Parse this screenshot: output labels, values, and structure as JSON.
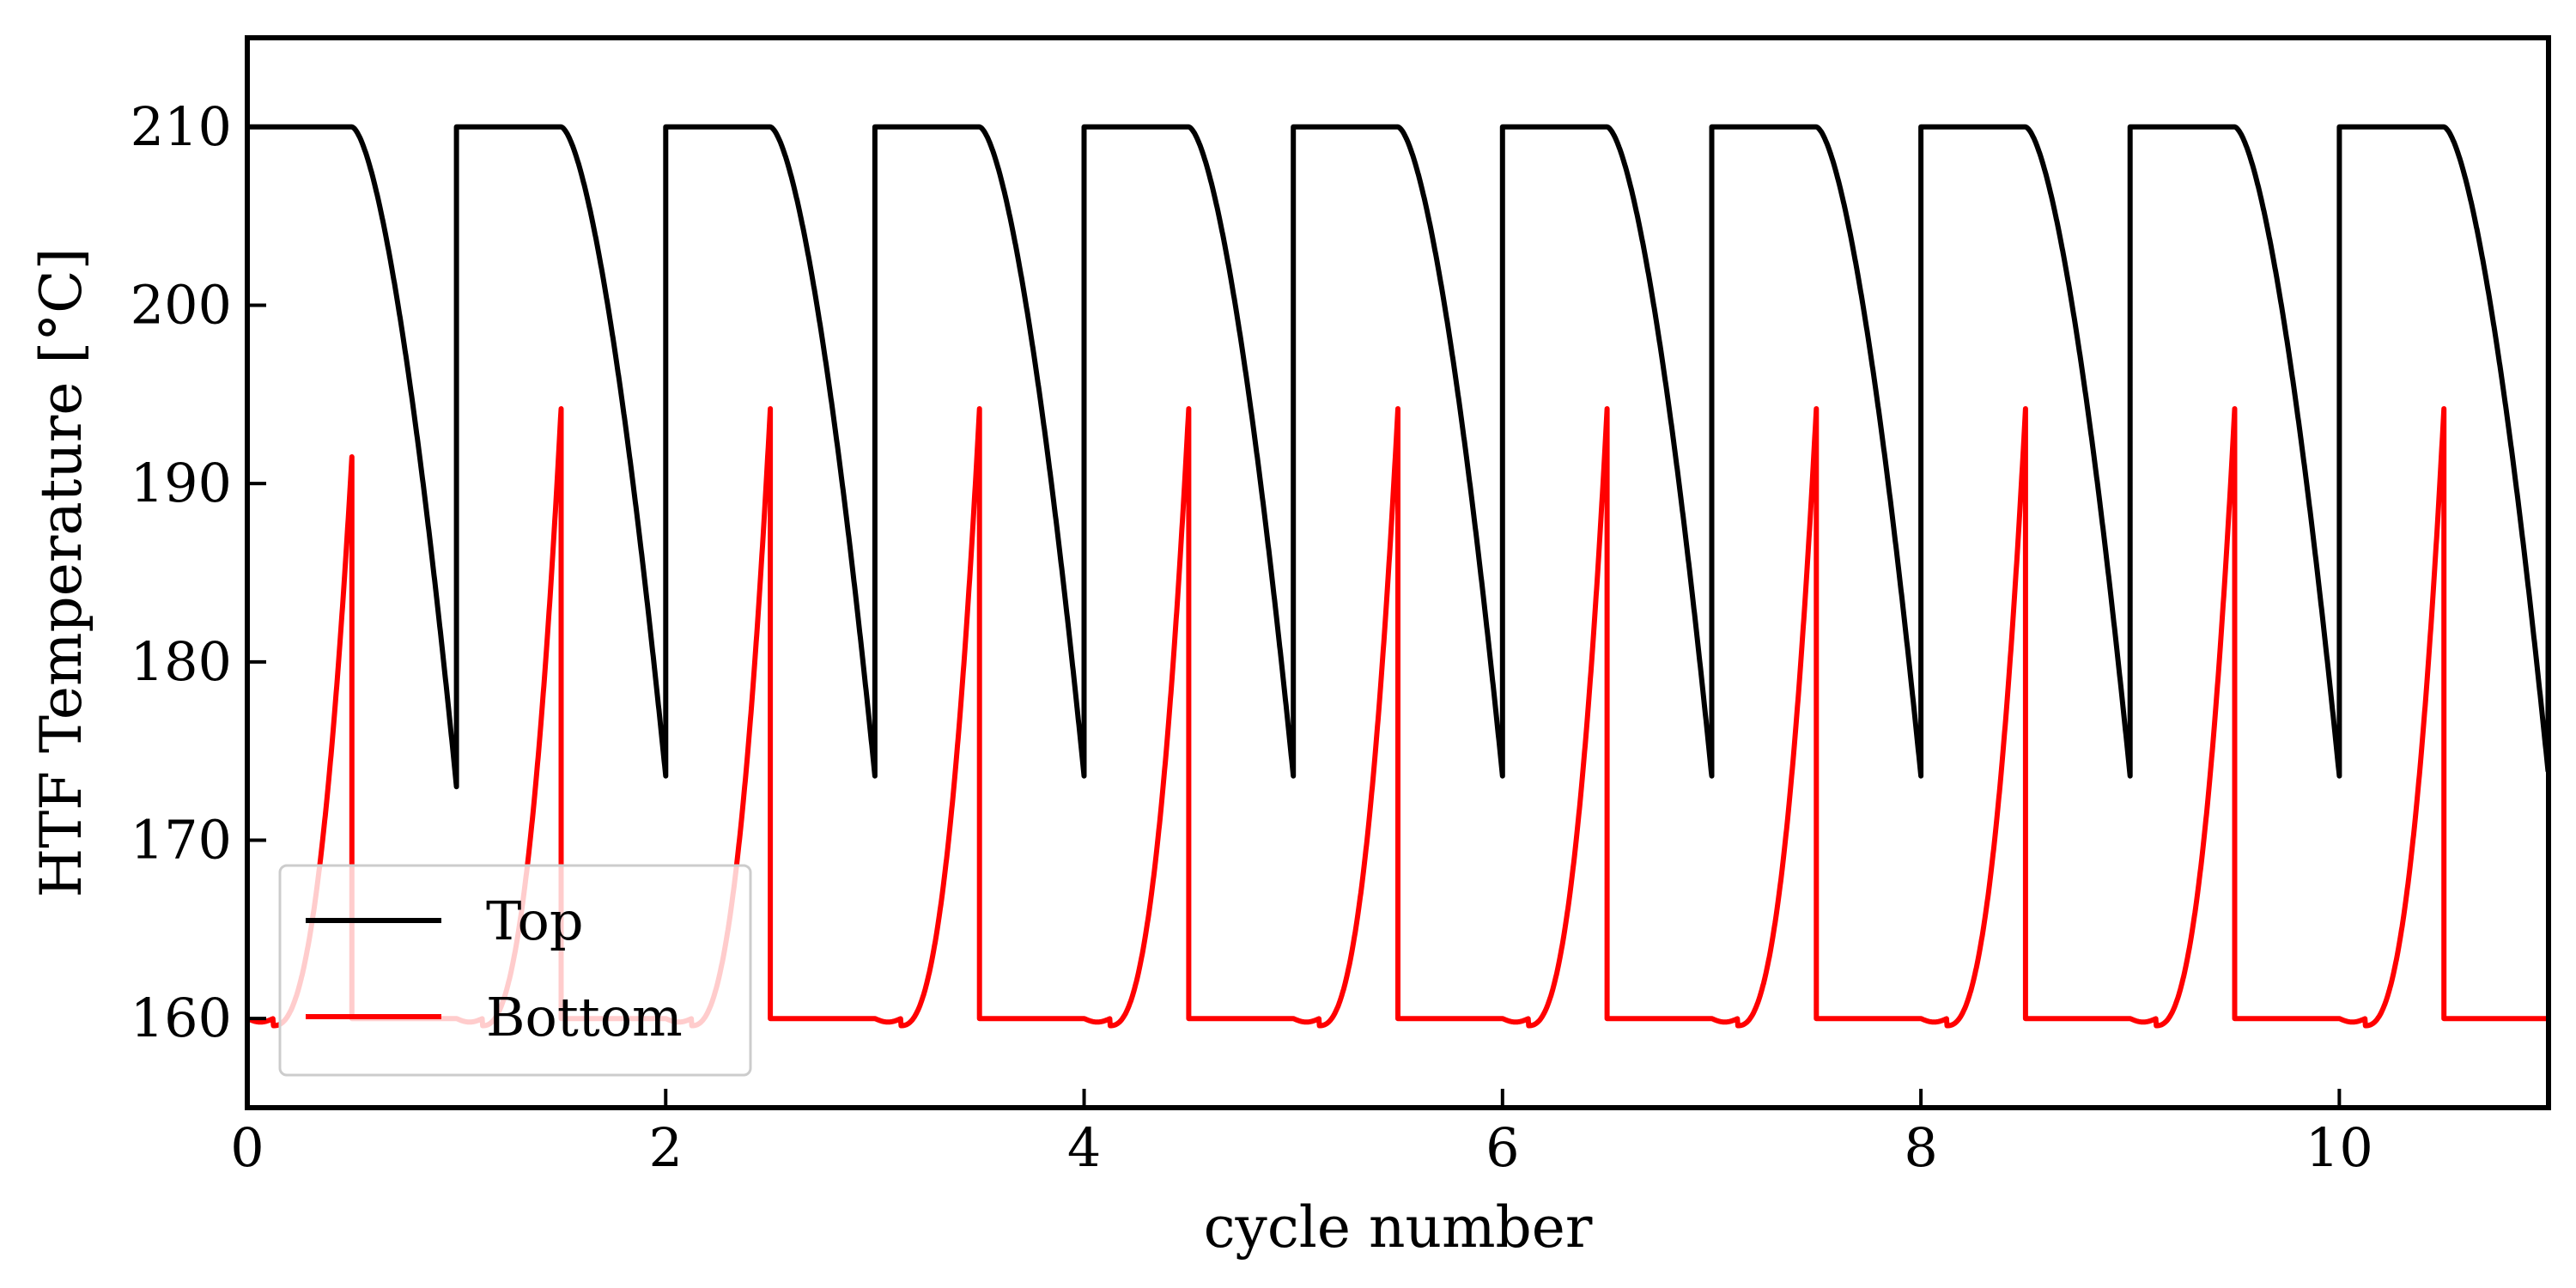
{
  "chart_data": {
    "type": "line",
    "title": "",
    "xlabel": "cycle number",
    "ylabel": "HTF Temperature [°C]",
    "xlim": [
      0,
      11
    ],
    "ylim": [
      155,
      215
    ],
    "xticks": [
      0,
      2,
      4,
      6,
      8,
      10
    ],
    "xtick_labels": [
      "0",
      "2",
      "4",
      "6",
      "8",
      "10"
    ],
    "yticks": [
      160,
      170,
      180,
      190,
      200,
      210
    ],
    "ytick_labels": [
      "160",
      "170",
      "180",
      "190",
      "200",
      "210"
    ],
    "grid": false,
    "legend_position": "lower-left",
    "series": [
      {
        "name": "Top",
        "color": "#000000",
        "description": "Charging at 210 then discharge dip to ~173.5 each cycle, instant reset to 210 at each integer cycle",
        "params": {
          "high": 210,
          "low_first": 173.0,
          "low": 173.6,
          "flat_until_frac": 0.5,
          "period": 1
        }
      },
      {
        "name": "Bottom",
        "color": "#ff0000",
        "description": "Base 160 then rise to ~194 peak each half cycle, instant drop to 160",
        "params": {
          "base": 160,
          "peak_first": 191.5,
          "peak": 194.2,
          "dip": 159.6,
          "period": 1,
          "offset": 0.5
        }
      }
    ]
  },
  "legend": {
    "items": [
      {
        "label": "Top",
        "color": "#000000"
      },
      {
        "label": "Bottom",
        "color": "#ff0000"
      }
    ]
  }
}
